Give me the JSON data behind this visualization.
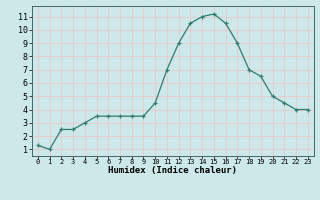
{
  "x": [
    0,
    1,
    2,
    3,
    4,
    5,
    6,
    7,
    8,
    9,
    10,
    11,
    12,
    13,
    14,
    15,
    16,
    17,
    18,
    19,
    20,
    21,
    22,
    23
  ],
  "y": [
    1.3,
    1.0,
    2.5,
    2.5,
    3.0,
    3.5,
    3.5,
    3.5,
    3.5,
    3.5,
    4.5,
    7.0,
    9.0,
    10.5,
    11.0,
    11.2,
    10.5,
    9.0,
    7.0,
    6.5,
    5.0,
    4.5,
    4.0,
    4.0
  ],
  "xlabel": "Humidex (Indice chaleur)",
  "bg_color": "#cce8e8",
  "line_color": "#2e7d6e",
  "grid_color": "#e8c8c8",
  "ylim": [
    0.5,
    11.8
  ],
  "xlim": [
    -0.5,
    23.5
  ],
  "yticks": [
    1,
    2,
    3,
    4,
    5,
    6,
    7,
    8,
    9,
    10,
    11
  ],
  "xticks": [
    0,
    1,
    2,
    3,
    4,
    5,
    6,
    7,
    8,
    9,
    10,
    11,
    12,
    13,
    14,
    15,
    16,
    17,
    18,
    19,
    20,
    21,
    22,
    23
  ],
  "xlabel_fontsize": 6.5,
  "xtick_fontsize": 5.0,
  "ytick_fontsize": 6.0
}
